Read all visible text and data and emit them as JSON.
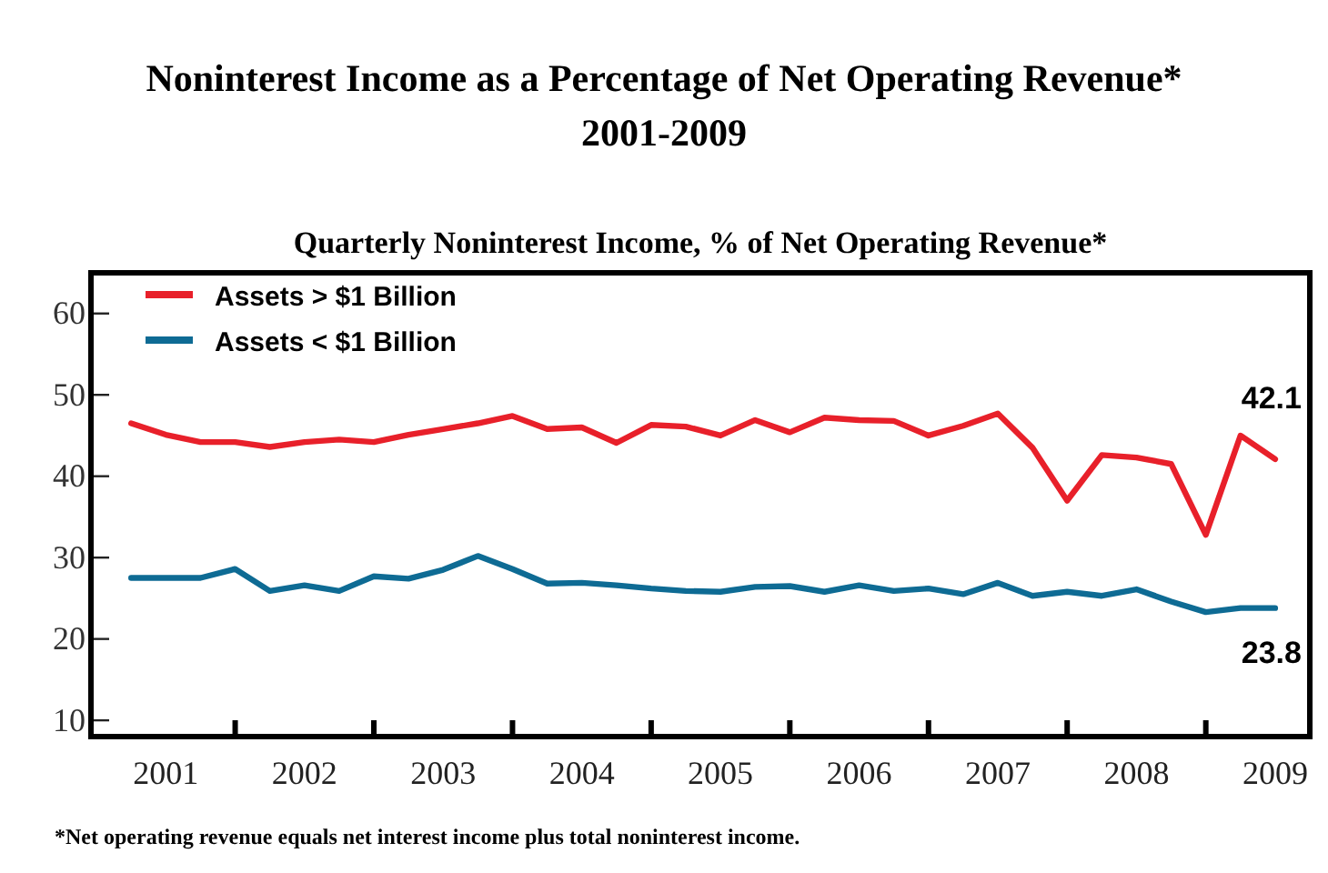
{
  "chart_data": {
    "type": "line",
    "title": "Noninterest Income as a Percentage of Net Operating Revenue*",
    "subtitle": "2001-2009",
    "annotations": [
      "Quarterly Noninterest Income, % of Net Operating Revenue*",
      "*Net operating revenue equals net interest income plus total noninterest income.",
      {
        "text": "42.1",
        "x": 2009.5,
        "y": 42.1
      },
      {
        "text": "23.8",
        "x": 2009.5,
        "y": 23.8
      }
    ],
    "x": [
      2001.25,
      2001.5,
      2001.75,
      2002,
      2002.25,
      2002.5,
      2002.75,
      2003,
      2003.25,
      2003.5,
      2003.75,
      2004,
      2004.25,
      2004.5,
      2004.75,
      2005,
      2005.25,
      2005.5,
      2005.75,
      2006,
      2006.25,
      2006.5,
      2006.75,
      2007,
      2007.25,
      2007.5,
      2007.75,
      2008,
      2008.25,
      2008.5,
      2008.75,
      2009,
      2009.25,
      2009.5
    ],
    "series": [
      {
        "name": "Assets > $1 Billion",
        "color": "#e8202a",
        "values": [
          46.5,
          45.1,
          44.2,
          44.2,
          43.6,
          44.2,
          44.5,
          44.2,
          45.1,
          45.8,
          46.5,
          47.4,
          45.8,
          46.0,
          44.1,
          46.3,
          46.1,
          45.0,
          46.9,
          45.4,
          47.2,
          46.9,
          46.8,
          45.0,
          46.2,
          47.7,
          43.5,
          37.0,
          42.6,
          42.3,
          41.5,
          32.8,
          45.0,
          42.1
        ]
      },
      {
        "name": "Assets < $1 Billion",
        "color": "#0e6b94",
        "values": [
          27.5,
          27.5,
          27.5,
          28.6,
          25.9,
          26.6,
          25.9,
          27.7,
          27.4,
          28.5,
          30.2,
          28.6,
          26.8,
          26.9,
          26.6,
          26.2,
          25.9,
          25.8,
          26.4,
          26.5,
          25.8,
          26.6,
          25.9,
          26.2,
          25.5,
          26.9,
          25.3,
          25.8,
          25.3,
          26.1,
          24.6,
          23.3,
          23.8,
          23.8
        ]
      }
    ],
    "xlim": [
      2000.96,
      2009.75
    ],
    "xticks": [
      {
        "value": 2001.5,
        "label": "2001"
      },
      {
        "value": 2002,
        "label": null
      },
      {
        "value": 2002.5,
        "label": "2002"
      },
      {
        "value": 2003,
        "label": null
      },
      {
        "value": 2003.5,
        "label": "2003"
      },
      {
        "value": 2004,
        "label": null
      },
      {
        "value": 2004.5,
        "label": "2004"
      },
      {
        "value": 2005,
        "label": null
      },
      {
        "value": 2005.5,
        "label": "2005"
      },
      {
        "value": 2006,
        "label": null
      },
      {
        "value": 2006.5,
        "label": "2006"
      },
      {
        "value": 2007,
        "label": null
      },
      {
        "value": 2007.5,
        "label": "2007"
      },
      {
        "value": 2008,
        "label": null
      },
      {
        "value": 2008.5,
        "label": "2008"
      },
      {
        "value": 2009,
        "label": null
      },
      {
        "value": 2009.5,
        "label": "2009"
      }
    ],
    "ylim": [
      8,
      65
    ],
    "yticks": [
      10,
      20,
      30,
      40,
      50,
      60
    ],
    "legend": "top left",
    "line_style": "solid"
  }
}
